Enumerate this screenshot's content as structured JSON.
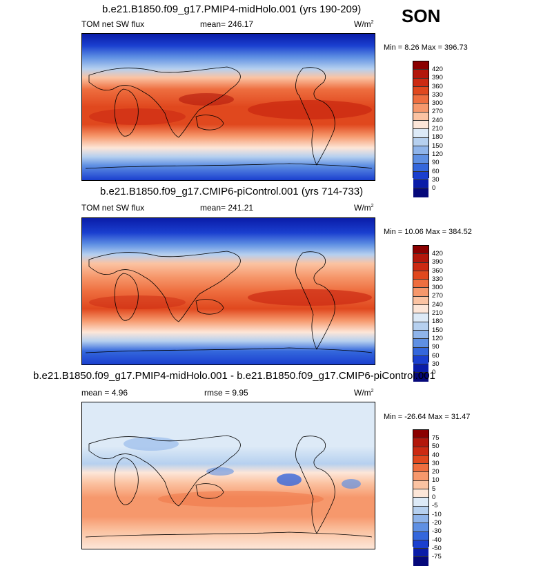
{
  "season": "SON",
  "panels": [
    {
      "title": "b.e21.B1850.f09_g17.PMIP4-midHolo.001 (yrs 190-209)",
      "left_label": "TOM net SW flux",
      "center_label": "mean= 246.17",
      "right_label": "W/m",
      "right_sup": "2",
      "minmax": "Min =   8.26 Max = 396.73",
      "colorbar_labels": [
        "420",
        "390",
        "360",
        "330",
        "300",
        "270",
        "240",
        "210",
        "180",
        "150",
        "120",
        "90",
        "60",
        "30",
        "0"
      ]
    },
    {
      "title": "b.e21.B1850.f09_g17.CMIP6-piControl.001 (yrs 714-733)",
      "left_label": "TOM net SW flux",
      "center_label": "mean= 241.21",
      "right_label": "W/m",
      "right_sup": "2",
      "minmax": "Min =  10.06 Max = 384.52",
      "colorbar_labels": [
        "420",
        "390",
        "360",
        "330",
        "300",
        "270",
        "240",
        "210",
        "180",
        "150",
        "120",
        "90",
        "60",
        "30",
        "0"
      ]
    },
    {
      "title": "b.e21.B1850.f09_g17.PMIP4-midHolo.001 - b.e21.B1850.f09_g17.CMIP6-piControl.001",
      "left_label": "mean =   4.96",
      "center_label": "rmse =   9.95",
      "right_label": "W/m",
      "right_sup": "2",
      "minmax": "Min = -26.64 Max =  31.47",
      "colorbar_labels": [
        "75",
        "50",
        "40",
        "30",
        "20",
        "10",
        "5",
        "0",
        "-5",
        "-10",
        "-20",
        "-30",
        "-40",
        "-50",
        "-75"
      ]
    }
  ],
  "colors": {
    "flux_scale": [
      "#8b0000",
      "#b3170b",
      "#cc2a12",
      "#e0481e",
      "#ee6e3f",
      "#f6986c",
      "#fbc3a2",
      "#fde6d8",
      "#ddeaf7",
      "#b6d0ef",
      "#8fb4ea",
      "#5f90e3",
      "#3467dc",
      "#1a3fcf",
      "#0a1ca8",
      "#05087a"
    ],
    "diff_scale": [
      "#8b0000",
      "#b3170b",
      "#cc2a12",
      "#e0481e",
      "#ee6e3f",
      "#f6986c",
      "#fbc3a2",
      "#fde6d8",
      "#ddeaf7",
      "#b6d0ef",
      "#8fb4ea",
      "#5f90e3",
      "#3467dc",
      "#1a3fcf",
      "#0a1ca8",
      "#05087a"
    ]
  }
}
